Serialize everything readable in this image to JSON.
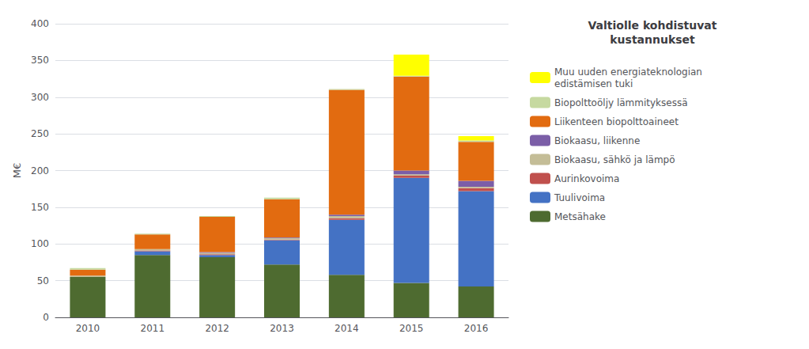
{
  "chart_data": {
    "type": "bar",
    "stacked": true,
    "title": "Valtiolle kohdistuvat\nkustannukset",
    "ylabel": "M€",
    "categories": [
      "2010",
      "2011",
      "2012",
      "2013",
      "2014",
      "2015",
      "2016"
    ],
    "series": [
      {
        "name": "Metsähake",
        "color": "#4e6b30",
        "values": [
          55,
          85,
          82,
          72,
          58,
          47,
          42
        ]
      },
      {
        "name": "Tuulivoima",
        "color": "#4472c4",
        "values": [
          0,
          5,
          3,
          33,
          75,
          143,
          130
        ]
      },
      {
        "name": "Aurinkovoima",
        "color": "#c0504d",
        "values": [
          0,
          1,
          1,
          1,
          2,
          3,
          4
        ]
      },
      {
        "name": "Biokaasu, sähkö ja lämpö",
        "color": "#c4bd97",
        "values": [
          2,
          2,
          2,
          2,
          3,
          2,
          2
        ]
      },
      {
        "name": "Biokaasu, liikenne",
        "color": "#7b5ea7",
        "values": [
          0,
          0,
          1,
          1,
          2,
          5,
          8
        ]
      },
      {
        "name": "Liikenteen biopolttoaineet",
        "color": "#e26b10",
        "values": [
          8,
          20,
          48,
          52,
          170,
          128,
          53
        ]
      },
      {
        "name": "Biopolttoöljy lämmityksessä",
        "color": "#c6d9a0",
        "values": [
          2,
          1,
          1,
          2,
          1,
          1,
          2
        ]
      },
      {
        "name": "Muu uuden energiateknologian\nedistämisen tuki",
        "color": "#ffff00",
        "values": [
          0,
          0,
          0,
          0,
          0,
          29,
          6
        ]
      }
    ],
    "ylim": [
      0,
      400
    ],
    "yticks": [
      0,
      50,
      100,
      150,
      200,
      250,
      300,
      350,
      400
    ],
    "grid": true,
    "legend": "right"
  }
}
